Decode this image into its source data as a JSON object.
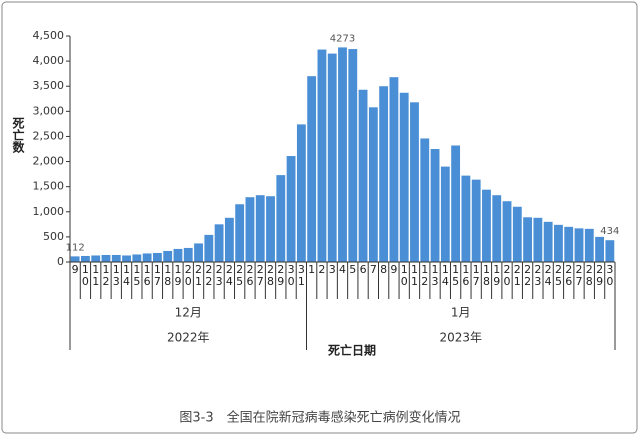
{
  "chart_data": {
    "type": "bar",
    "y_label": "死亡数",
    "x_label": "死亡日期",
    "caption": "图3-3　全国在院新冠病毒感染死亡病例变化情况",
    "categories": [
      "9",
      "10",
      "11",
      "12",
      "13",
      "14",
      "15",
      "16",
      "17",
      "18",
      "19",
      "20",
      "21",
      "22",
      "23",
      "24",
      "25",
      "26",
      "27",
      "28",
      "29",
      "30",
      "31",
      "1",
      "2",
      "3",
      "4",
      "5",
      "6",
      "7",
      "8",
      "9",
      "10",
      "11",
      "12",
      "13",
      "14",
      "15",
      "16",
      "17",
      "18",
      "19",
      "20",
      "21",
      "22",
      "23",
      "24",
      "25",
      "26",
      "27",
      "28",
      "29",
      "30"
    ],
    "values": [
      112,
      120,
      130,
      140,
      140,
      130,
      150,
      170,
      180,
      220,
      260,
      280,
      370,
      540,
      750,
      880,
      1150,
      1290,
      1330,
      1310,
      1730,
      2110,
      2740,
      3700,
      4230,
      4150,
      4273,
      4240,
      3430,
      3080,
      3500,
      3680,
      3370,
      3180,
      2460,
      2250,
      1900,
      2320,
      1720,
      1640,
      1440,
      1330,
      1210,
      1100,
      890,
      880,
      800,
      740,
      700,
      670,
      660,
      500,
      434
    ],
    "value_labels": [
      "112",
      null,
      null,
      null,
      null,
      null,
      null,
      null,
      null,
      null,
      null,
      null,
      null,
      null,
      null,
      null,
      null,
      null,
      null,
      null,
      null,
      null,
      null,
      null,
      null,
      null,
      "4273",
      null,
      null,
      null,
      null,
      null,
      null,
      null,
      null,
      null,
      null,
      null,
      null,
      null,
      null,
      null,
      null,
      null,
      null,
      null,
      null,
      null,
      null,
      null,
      null,
      null,
      "434"
    ],
    "months": [
      {
        "label": "12月",
        "count": 23
      },
      {
        "label": "1月",
        "count": 30
      }
    ],
    "years": [
      {
        "label": "2022年",
        "count": 23
      },
      {
        "label": "2023年",
        "count": 30
      }
    ],
    "color": "#4a8fd6",
    "ylim": [
      0,
      4500
    ],
    "yticks": [
      0,
      500,
      {
        "value": 1000,
        "label": "1,000"
      },
      {
        "value": 1500,
        "label": "1,500"
      },
      {
        "value": 2000,
        "label": "2,000"
      },
      {
        "value": 2500,
        "label": "2,500"
      },
      {
        "value": 3000,
        "label": "3,000"
      },
      {
        "value": 3500,
        "label": "3,500"
      },
      {
        "value": 4000,
        "label": "4,000"
      },
      {
        "value": 4500,
        "label": "4,500"
      }
    ]
  }
}
